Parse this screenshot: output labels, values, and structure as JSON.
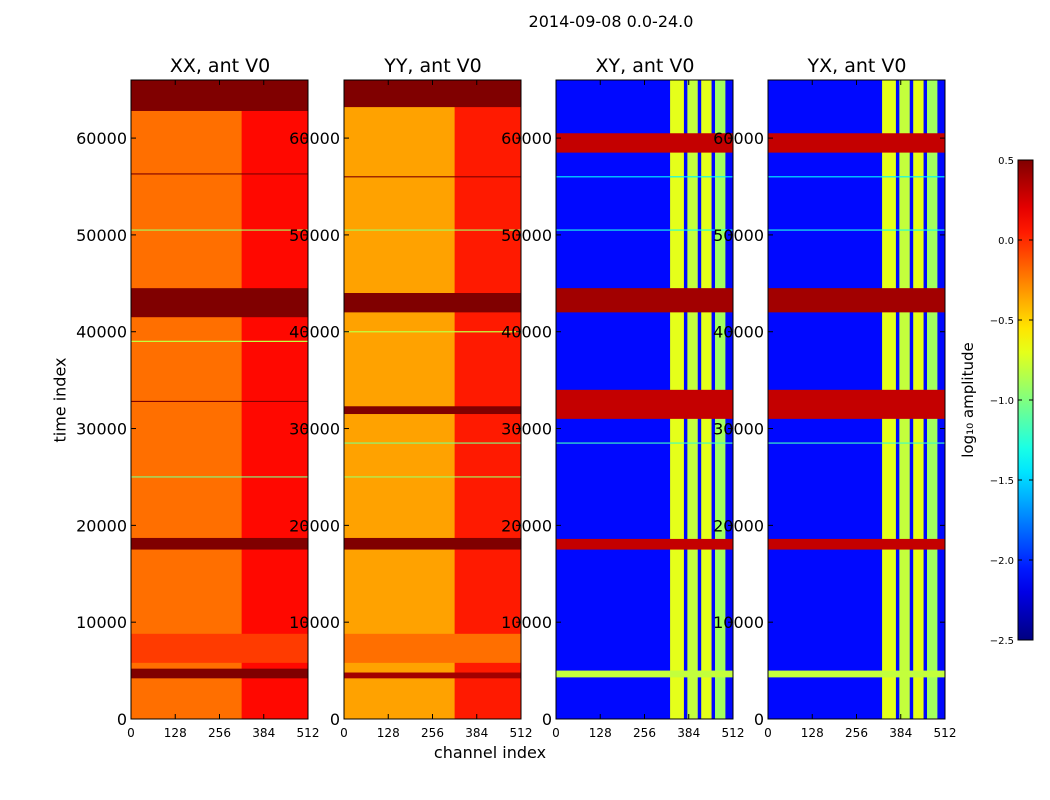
{
  "suptitle": "2014-09-08 0.0-24.0",
  "panel_titles": [
    "XX, ant V0",
    "YY, ant V0",
    "XY, ant V0",
    "YX, ant V0"
  ],
  "xlabel": "channel index",
  "ylabel": "time index",
  "colorbar_label": "log₁₀ amplitude",
  "chart_data": {
    "type": "heatmap",
    "title": "2014-09-08 0.0-24.0",
    "xlabel": "channel index",
    "ylabel": "time index",
    "xlim": [
      0,
      512
    ],
    "ylim": [
      0,
      66000
    ],
    "x_ticks": [
      0,
      128,
      256,
      384,
      512
    ],
    "y_ticks": [
      0,
      10000,
      20000,
      30000,
      40000,
      50000,
      60000
    ],
    "colorbar": {
      "label": "log10 amplitude",
      "vmin": -2.5,
      "vmax": 0.5,
      "ticks": [
        "0.5",
        "0.0",
        "−0.5",
        "−1.0",
        "−1.5",
        "−2.0",
        "−2.5"
      ],
      "tick_values": [
        0.5,
        0.0,
        -0.5,
        -1.0,
        -1.5,
        -2.0,
        -2.5
      ],
      "colormap": "jet"
    },
    "panels": [
      {
        "name": "XX, ant V0",
        "base_level": -0.2,
        "column_bands": [
          {
            "x0": 320,
            "x1": 512,
            "level": 0.1
          }
        ],
        "row_bands": [
          {
            "y0": 4200,
            "y1": 5200,
            "level": 0.5
          },
          {
            "y0": 5800,
            "y1": 8800,
            "level": -0.05
          },
          {
            "y0": 17500,
            "y1": 18700,
            "level": 0.5
          },
          {
            "y0": 41500,
            "y1": 44500,
            "level": 0.5
          },
          {
            "y0": 62800,
            "y1": 66000,
            "level": 0.5
          }
        ],
        "lines": [
          {
            "y": 25000,
            "level": -1.0
          },
          {
            "y": 32800,
            "level": 0.5
          },
          {
            "y": 39000,
            "level": -0.8
          },
          {
            "y": 50500,
            "level": -0.9
          },
          {
            "y": 56300,
            "level": 0.5
          }
        ]
      },
      {
        "name": "YY, ant V0",
        "base_level": -0.35,
        "column_bands": [
          {
            "x0": 320,
            "x1": 512,
            "level": 0.05
          }
        ],
        "row_bands": [
          {
            "y0": 4200,
            "y1": 4800,
            "level": 0.4
          },
          {
            "y0": 5800,
            "y1": 8800,
            "level": -0.2
          },
          {
            "y0": 17500,
            "y1": 18700,
            "level": 0.5
          },
          {
            "y0": 31500,
            "y1": 32300,
            "level": 0.5
          },
          {
            "y0": 42000,
            "y1": 44000,
            "level": 0.5
          },
          {
            "y0": 63200,
            "y1": 66000,
            "level": 0.5
          }
        ],
        "lines": [
          {
            "y": 25000,
            "level": -0.9
          },
          {
            "y": 28500,
            "level": -1.0
          },
          {
            "y": 40000,
            "level": -0.8
          },
          {
            "y": 50500,
            "level": -0.9
          },
          {
            "y": 56000,
            "level": 0.5
          }
        ]
      },
      {
        "name": "XY, ant V0",
        "base_level": -2.1,
        "column_bands": [
          {
            "x0": 330,
            "x1": 370,
            "level": -0.7
          },
          {
            "x0": 380,
            "x1": 410,
            "level": -0.8
          },
          {
            "x0": 420,
            "x1": 450,
            "level": -0.7
          },
          {
            "x0": 460,
            "x1": 490,
            "level": -0.9
          }
        ],
        "row_bands": [
          {
            "y0": 4300,
            "y1": 5000,
            "level": -0.8
          },
          {
            "y0": 17500,
            "y1": 18600,
            "level": 0.3
          },
          {
            "y0": 31000,
            "y1": 34000,
            "level": 0.3
          },
          {
            "y0": 42000,
            "y1": 44500,
            "level": 0.4
          },
          {
            "y0": 58500,
            "y1": 60500,
            "level": 0.3
          }
        ],
        "lines": [
          {
            "y": 28500,
            "level": -1.2
          },
          {
            "y": 50500,
            "level": -1.3
          },
          {
            "y": 56000,
            "level": -1.4
          }
        ]
      },
      {
        "name": "YX, ant V0",
        "base_level": -2.1,
        "column_bands": [
          {
            "x0": 330,
            "x1": 370,
            "level": -0.7
          },
          {
            "x0": 380,
            "x1": 410,
            "level": -0.8
          },
          {
            "x0": 420,
            "x1": 450,
            "level": -0.7
          },
          {
            "x0": 460,
            "x1": 490,
            "level": -0.9
          }
        ],
        "row_bands": [
          {
            "y0": 4300,
            "y1": 5000,
            "level": -0.8
          },
          {
            "y0": 17500,
            "y1": 18600,
            "level": 0.3
          },
          {
            "y0": 31000,
            "y1": 34000,
            "level": 0.3
          },
          {
            "y0": 42000,
            "y1": 44500,
            "level": 0.4
          },
          {
            "y0": 58500,
            "y1": 60500,
            "level": 0.3
          }
        ],
        "lines": [
          {
            "y": 28500,
            "level": -1.2
          },
          {
            "y": 50500,
            "level": -1.3
          },
          {
            "y": 56000,
            "level": -1.4
          }
        ]
      }
    ]
  }
}
